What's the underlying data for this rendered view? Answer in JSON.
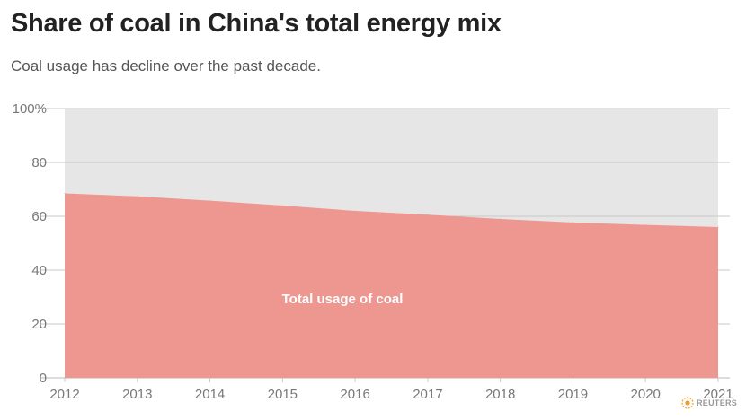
{
  "title": "Share of coal in China's total energy mix",
  "subtitle": "Coal usage has decline over the past decade.",
  "source_text": "REUTERS",
  "colors": {
    "area": "#ee9690",
    "background_band": "#e6e6e6",
    "grid": "#c8c8c8",
    "brand": "#f29c2e"
  },
  "chart_data": {
    "type": "area",
    "x": [
      2012,
      2013,
      2014,
      2015,
      2016,
      2017,
      2018,
      2019,
      2020,
      2021
    ],
    "series": [
      {
        "name": "Total usage of coal",
        "values": [
          68.5,
          67.4,
          65.8,
          64.0,
          62.0,
          60.6,
          59.0,
          57.7,
          56.8,
          56.0
        ]
      }
    ],
    "xlabel": "",
    "ylabel": "",
    "ylim": [
      0,
      100
    ],
    "y_ticks": [
      "0",
      "20",
      "40",
      "60",
      "80",
      "100%"
    ],
    "y_tick_values": [
      0,
      20,
      40,
      60,
      80,
      100
    ],
    "annotation": "Total usage of coal",
    "grid": true,
    "legend": "none"
  }
}
